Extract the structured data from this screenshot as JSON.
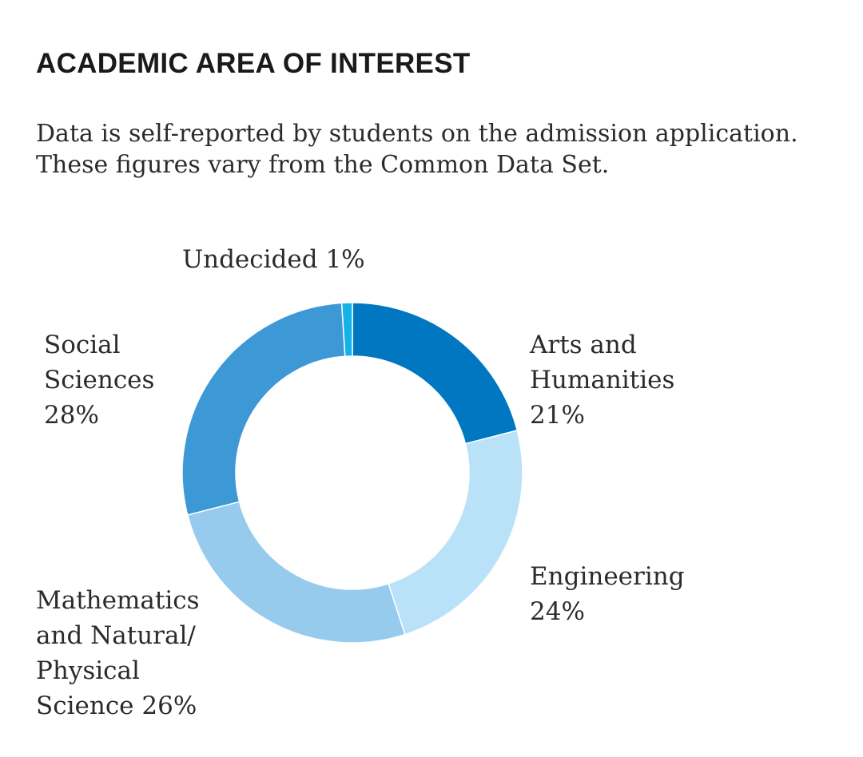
{
  "header": {
    "title": "ACADEMIC AREA OF INTEREST",
    "subtitle": "Data is self-reported by students on the admission application. These figures vary from the Common Data Set."
  },
  "chart_data": {
    "type": "donut",
    "title": "ACADEMIC AREA OF INTEREST",
    "unit": "%",
    "slices": [
      {
        "name": "Arts and Humanities",
        "value": 21,
        "label_lines": [
          "Arts and",
          "Humanities",
          "21%"
        ],
        "color": "#0077c0"
      },
      {
        "name": "Engineering",
        "value": 24,
        "label_lines": [
          "Engineering",
          "24%"
        ],
        "color": "#b9e2f8"
      },
      {
        "name": "Mathematics and Natural/Physical Science",
        "value": 26,
        "label_lines": [
          "Mathematics",
          "and Natural/",
          "Physical",
          "Science 26%"
        ],
        "color": "#97cbed"
      },
      {
        "name": "Social Sciences",
        "value": 28,
        "label_lines": [
          "Social",
          "Sciences",
          "28%"
        ],
        "color": "#3d99d6"
      },
      {
        "name": "Undecided",
        "value": 1,
        "label_lines": [
          "Undecided 1%"
        ],
        "color": "#14b2e6"
      }
    ]
  }
}
